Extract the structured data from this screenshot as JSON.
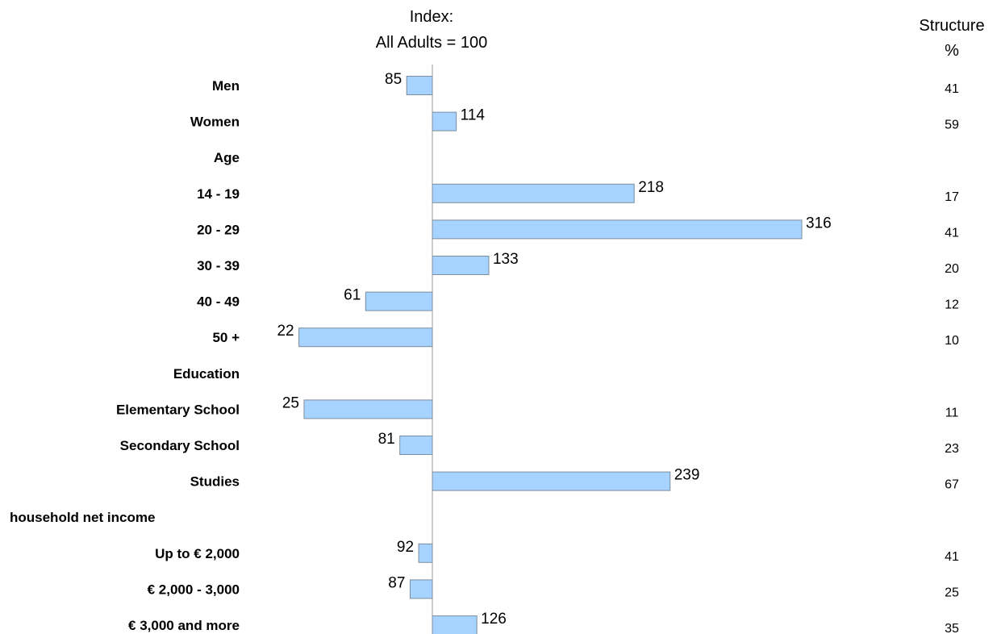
{
  "chart_data": {
    "type": "bar",
    "orientation": "horizontal",
    "header": {
      "index_line1": "Index:",
      "index_line2": "All Adults = 100",
      "structure_line1": "Structure",
      "structure_line2": "%"
    },
    "baseline": 100,
    "grid": false,
    "legend": "none",
    "rows": [
      {
        "label": "Men",
        "index": 85,
        "structure": 41
      },
      {
        "label": "Women",
        "index": 114,
        "structure": 59
      },
      {
        "label": "Age",
        "heading": true
      },
      {
        "label": "14 - 19",
        "index": 218,
        "structure": 17
      },
      {
        "label": "20 - 29",
        "index": 316,
        "structure": 41
      },
      {
        "label": "30 - 39",
        "index": 133,
        "structure": 20
      },
      {
        "label": "40 - 49",
        "index": 61,
        "structure": 12
      },
      {
        "label": "50 +",
        "index": 22,
        "structure": 10
      },
      {
        "label": "Education",
        "heading": true
      },
      {
        "label": "Elementary School",
        "index": 25,
        "structure": 11
      },
      {
        "label": "Secondary School",
        "index": 81,
        "structure": 23
      },
      {
        "label": "Studies",
        "index": 239,
        "structure": 67
      },
      {
        "label": "household net income",
        "heading": true,
        "align": "left"
      },
      {
        "label": "Up to € 2,000",
        "index": 92,
        "structure": 41
      },
      {
        "label": "€ 2,000 - 3,000",
        "index": 87,
        "structure": 25
      },
      {
        "label": "€ 3,000 and more",
        "index": 126,
        "structure": 35
      }
    ]
  }
}
